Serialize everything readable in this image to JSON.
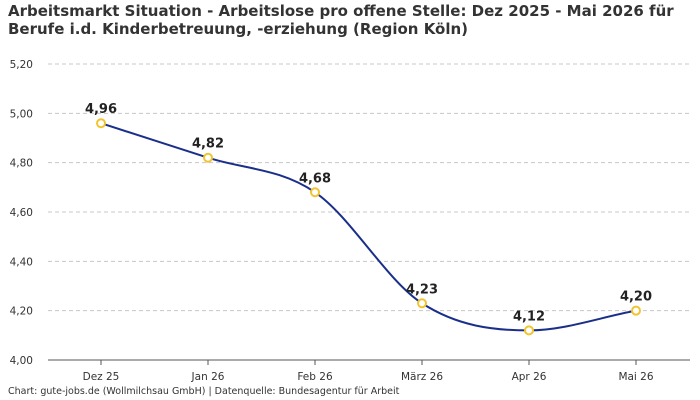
{
  "chart_data": {
    "type": "line",
    "title_line1": "Arbeitsmarkt Situation - Arbeitslose pro offene Stelle: Dez 2025 - Mai 2026 für",
    "title_line2": "Berufe i.d. Kinderbetreuung, -erziehung (Region Köln)",
    "categories": [
      "Dez 25",
      "Jan 26",
      "Feb 26",
      "März 26",
      "Apr 26",
      "Mai 26"
    ],
    "series": [
      {
        "values": [
          4.96,
          4.82,
          4.68,
          4.23,
          4.12,
          4.2
        ]
      }
    ],
    "data_labels": [
      "4,96",
      "4,82",
      "4,68",
      "4,23",
      "4,12",
      "4,20"
    ],
    "y_ticks": [
      4.0,
      4.2,
      4.4,
      4.6,
      4.8,
      5.0,
      5.2
    ],
    "y_tick_labels": [
      "4,00",
      "4,20",
      "4,40",
      "4,60",
      "4,80",
      "5,00",
      "5,20"
    ],
    "ylim": [
      4.0,
      5.2
    ],
    "grid": true,
    "line_color": "#1a2f8a",
    "marker_color": "#f2c530",
    "grid_color": "#c8c8c8",
    "source": "Chart: gute-jobs.de (Wollmilchsau GmbH) | Datenquelle: Bundesagentur für Arbeit"
  }
}
